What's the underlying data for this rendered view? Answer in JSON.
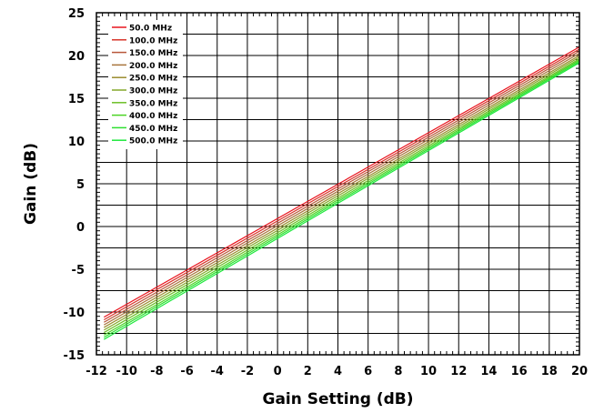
{
  "chart_data": {
    "type": "line",
    "title": "",
    "xlabel": "Gain Setting (dB)",
    "ylabel": "Gain (dB)",
    "xlim": [
      -12,
      20
    ],
    "ylim": [
      -15,
      25
    ],
    "xticks": [
      -12,
      -10,
      -8,
      -6,
      -4,
      -2,
      0,
      2,
      4,
      6,
      8,
      10,
      12,
      14,
      16,
      18,
      20
    ],
    "yticks": [
      -15,
      -10,
      -5,
      0,
      5,
      10,
      15,
      20,
      25
    ],
    "grid": true,
    "legend_position": "top-left",
    "x": [
      -11.5,
      20
    ],
    "series": [
      {
        "name": "50.0 MHz",
        "color": "#e8141e",
        "values": [
          -10.6,
          21.0
        ]
      },
      {
        "name": "100.0 MHz",
        "color": "#d9342a",
        "values": [
          -10.9,
          20.75
        ]
      },
      {
        "name": "150.0 MHz",
        "color": "#b8573a",
        "values": [
          -11.2,
          20.5
        ]
      },
      {
        "name": "200.0 MHz",
        "color": "#a8743c",
        "values": [
          -11.5,
          20.25
        ]
      },
      {
        "name": "250.0 MHz",
        "color": "#9a8c2e",
        "values": [
          -11.8,
          20.0
        ]
      },
      {
        "name": "300.0 MHz",
        "color": "#84a82a",
        "values": [
          -12.1,
          19.8
        ]
      },
      {
        "name": "350.0 MHz",
        "color": "#6cc026",
        "values": [
          -12.4,
          19.6
        ]
      },
      {
        "name": "400.0 MHz",
        "color": "#4cd424",
        "values": [
          -12.7,
          19.45
        ]
      },
      {
        "name": "450.0 MHz",
        "color": "#2ee030",
        "values": [
          -12.95,
          19.3
        ]
      },
      {
        "name": "500.0 MHz",
        "color": "#1ee83c",
        "values": [
          -13.2,
          19.15
        ]
      }
    ]
  }
}
